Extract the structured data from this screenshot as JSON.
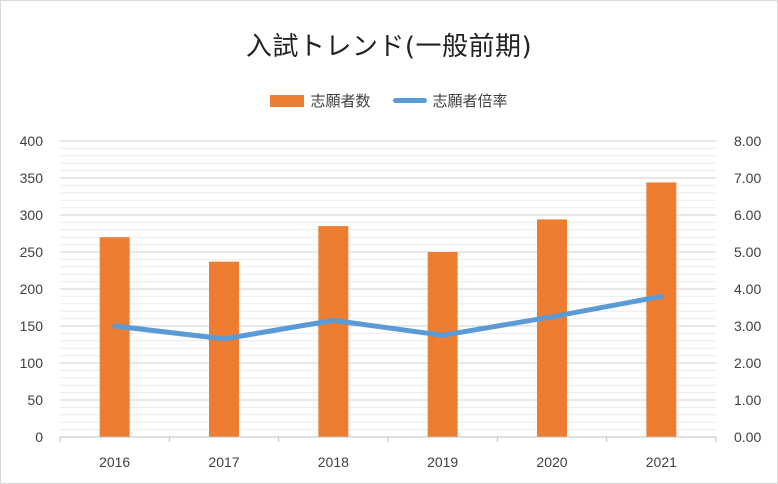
{
  "chart_data": {
    "type": "bar",
    "title": "入試トレンド(一般前期)",
    "categories": [
      "2016",
      "2017",
      "2018",
      "2019",
      "2020",
      "2021"
    ],
    "series": [
      {
        "name": "志願者数",
        "type": "bar",
        "axis": "left",
        "color": "#ED7D31",
        "values": [
          270,
          237,
          285,
          250,
          294,
          344
        ]
      },
      {
        "name": "志願者倍率",
        "type": "line",
        "axis": "right",
        "color": "#5B9BD5",
        "values": [
          3.0,
          2.65,
          3.15,
          2.75,
          3.25,
          3.8
        ]
      }
    ],
    "ylim_left": [
      0,
      400
    ],
    "yticks_left": [
      "0",
      "50",
      "100",
      "150",
      "200",
      "250",
      "300",
      "350",
      "400"
    ],
    "ylim_right": [
      0,
      8
    ],
    "yticks_right": [
      "0.00",
      "1.00",
      "2.00",
      "3.00",
      "4.00",
      "5.00",
      "6.00",
      "7.00",
      "8.00"
    ],
    "grid": true,
    "legend_position": "top"
  }
}
